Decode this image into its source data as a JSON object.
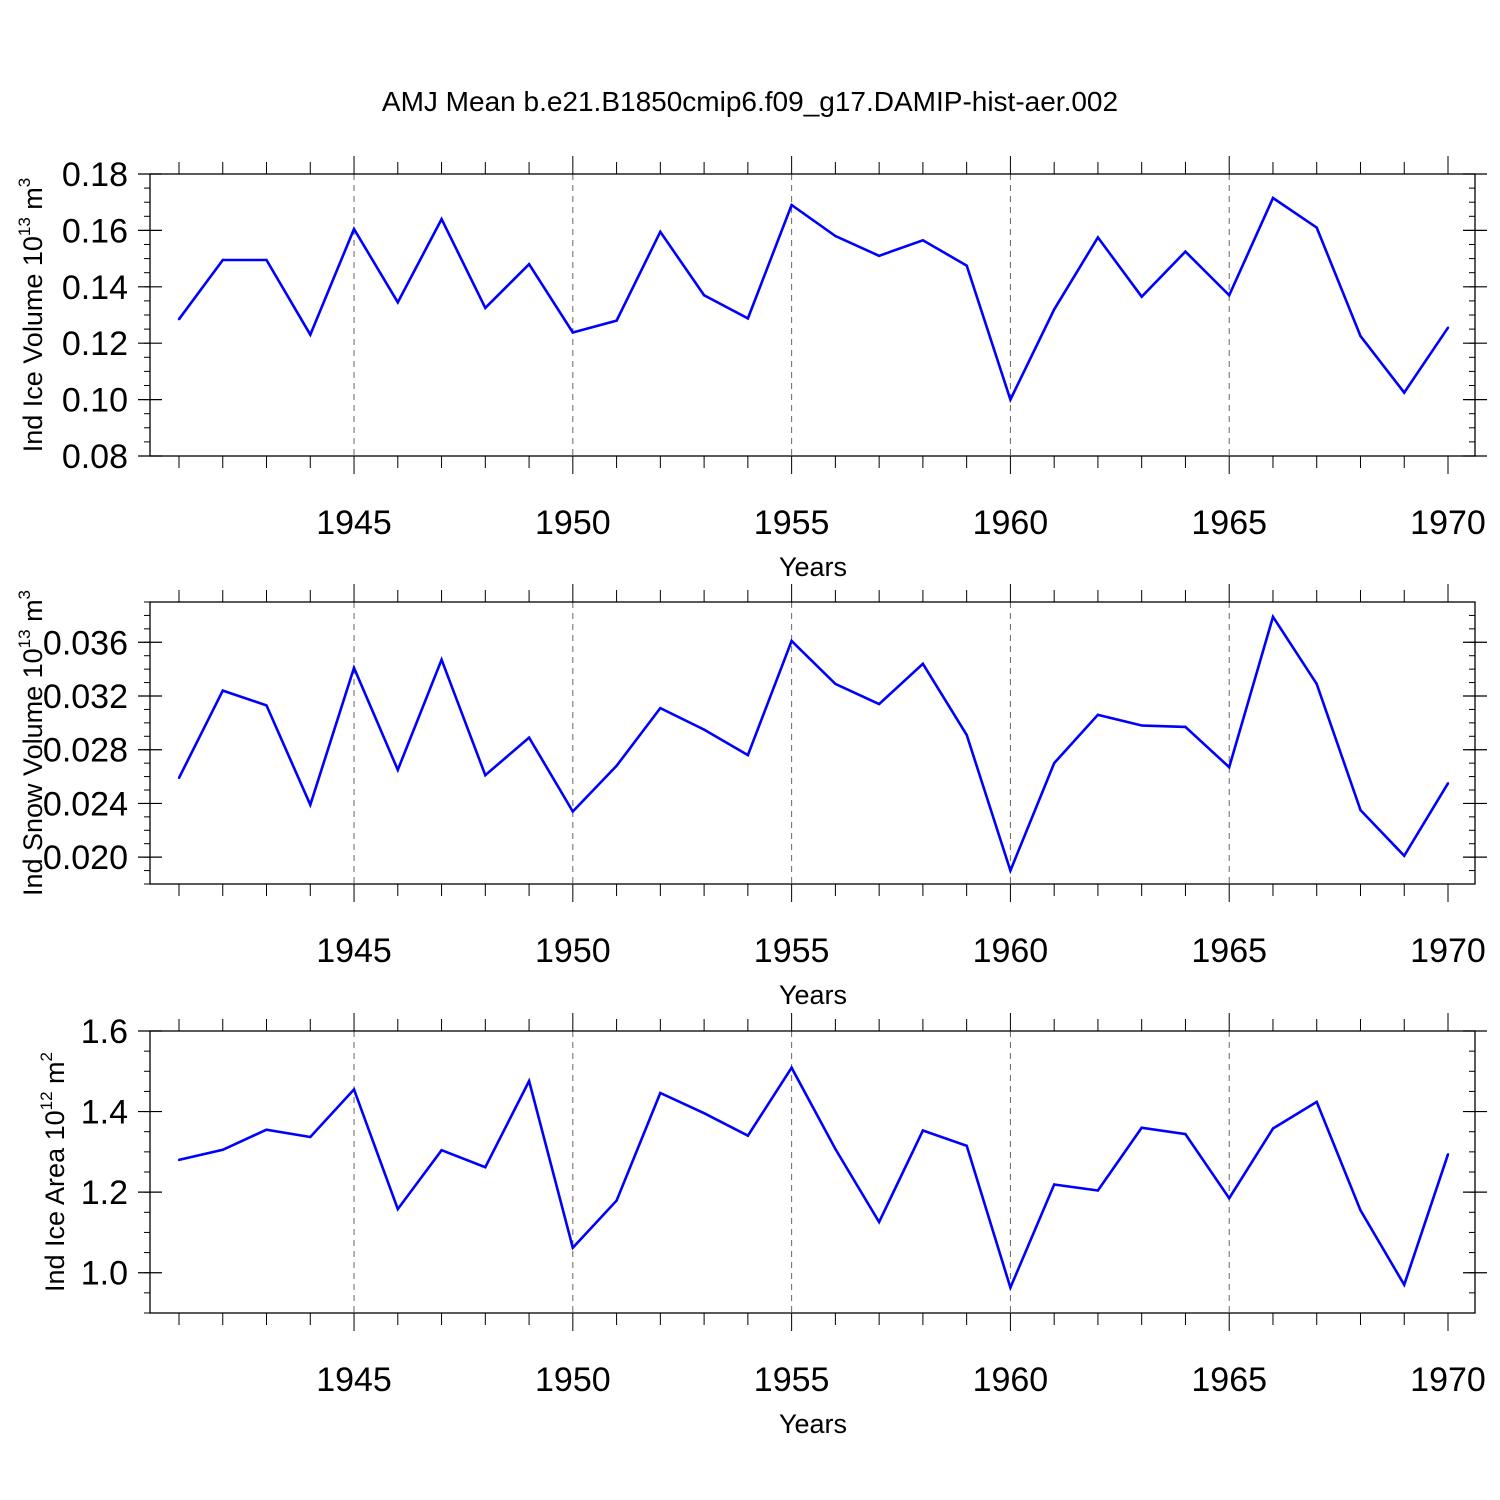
{
  "title": "AMJ Mean b.e21.B1850cmip6.f09_g17.DAMIP-hist-aer.002",
  "line_color": "#0000ff",
  "chart_data": [
    {
      "type": "line",
      "ylabel": "Ind Ice Volume 10",
      "ylabel_exp": "13",
      "ylabel_unit": " m",
      "ylabel_unit_exp": "3",
      "xlabel": "Years",
      "xlim": [
        1941,
        1970
      ],
      "ylim": [
        0.08,
        0.18
      ],
      "y_ticks": [
        0.08,
        0.1,
        0.12,
        0.14,
        0.16,
        0.18
      ],
      "y_tick_labels": [
        "0.08",
        "0.10",
        "0.12",
        "0.14",
        "0.16",
        "0.18"
      ],
      "y_minor_step": 0.005,
      "x_ticks": [
        1945,
        1950,
        1955,
        1960,
        1965,
        1970
      ],
      "x_tick_labels": [
        "1945",
        "1950",
        "1955",
        "1960",
        "1965",
        "1970"
      ],
      "grid_x": [
        1945,
        1950,
        1955,
        1960,
        1965
      ],
      "x": [
        1941,
        1942,
        1943,
        1944,
        1945,
        1946,
        1947,
        1948,
        1949,
        1950,
        1951,
        1952,
        1953,
        1954,
        1955,
        1956,
        1957,
        1958,
        1959,
        1960,
        1961,
        1962,
        1963,
        1964,
        1965,
        1966,
        1967,
        1968,
        1969,
        1970
      ],
      "values": [
        0.1285,
        0.1495,
        0.1495,
        0.123,
        0.1605,
        0.1345,
        0.164,
        0.1325,
        0.148,
        0.1238,
        0.128,
        0.1595,
        0.137,
        0.1288,
        0.169,
        0.158,
        0.151,
        0.1565,
        0.1475,
        0.1,
        0.132,
        0.1575,
        0.1365,
        0.1525,
        0.137,
        0.1715,
        0.161,
        0.1225,
        0.1025,
        0.1255
      ]
    },
    {
      "type": "line",
      "ylabel": "Ind Snow Volume 10",
      "ylabel_exp": "13",
      "ylabel_unit": " m",
      "ylabel_unit_exp": "3",
      "xlabel": "Years",
      "xlim": [
        1941,
        1970
      ],
      "ylim": [
        0.018,
        0.039
      ],
      "y_ticks": [
        0.02,
        0.024,
        0.028,
        0.032,
        0.036
      ],
      "y_tick_labels": [
        "0.020",
        "0.024",
        "0.028",
        "0.032",
        "0.036"
      ],
      "y_minor_step": 0.001,
      "x_ticks": [
        1945,
        1950,
        1955,
        1960,
        1965,
        1970
      ],
      "x_tick_labels": [
        "1945",
        "1950",
        "1955",
        "1960",
        "1965",
        "1970"
      ],
      "grid_x": [
        1945,
        1950,
        1955,
        1960,
        1965
      ],
      "x": [
        1941,
        1942,
        1943,
        1944,
        1945,
        1946,
        1947,
        1948,
        1949,
        1950,
        1951,
        1952,
        1953,
        1954,
        1955,
        1956,
        1957,
        1958,
        1959,
        1960,
        1961,
        1962,
        1963,
        1964,
        1965,
        1966,
        1967,
        1968,
        1969,
        1970
      ],
      "values": [
        0.0259,
        0.0324,
        0.0313,
        0.0239,
        0.0341,
        0.0265,
        0.0347,
        0.0261,
        0.0289,
        0.0234,
        0.0268,
        0.0311,
        0.0295,
        0.0276,
        0.0361,
        0.0329,
        0.0314,
        0.0344,
        0.0291,
        0.019,
        0.027,
        0.0306,
        0.0298,
        0.0297,
        0.0267,
        0.0379,
        0.0329,
        0.0235,
        0.0201,
        0.0255
      ]
    },
    {
      "type": "line",
      "ylabel": "Ind Ice Area 10",
      "ylabel_exp": "12",
      "ylabel_unit": " m",
      "ylabel_unit_exp": "2",
      "xlabel": "Years",
      "xlim": [
        1941,
        1970
      ],
      "ylim": [
        0.9,
        1.6
      ],
      "y_ticks": [
        1.0,
        1.2,
        1.4,
        1.6
      ],
      "y_tick_labels": [
        "1.0",
        "1.2",
        "1.4",
        "1.6"
      ],
      "y_minor_step": 0.05,
      "x_ticks": [
        1945,
        1950,
        1955,
        1960,
        1965,
        1970
      ],
      "x_tick_labels": [
        "1945",
        "1950",
        "1955",
        "1960",
        "1965",
        "1970"
      ],
      "grid_x": [
        1945,
        1950,
        1955,
        1960,
        1965
      ],
      "x": [
        1941,
        1942,
        1943,
        1944,
        1945,
        1946,
        1947,
        1948,
        1949,
        1950,
        1951,
        1952,
        1953,
        1954,
        1955,
        1956,
        1957,
        1958,
        1959,
        1960,
        1961,
        1962,
        1963,
        1964,
        1965,
        1966,
        1967,
        1968,
        1969,
        1970
      ],
      "values": [
        1.28,
        1.305,
        1.355,
        1.337,
        1.455,
        1.158,
        1.304,
        1.262,
        1.476,
        1.062,
        1.179,
        1.446,
        1.396,
        1.34,
        1.509,
        1.307,
        1.126,
        1.353,
        1.315,
        0.963,
        1.219,
        1.204,
        1.36,
        1.344,
        1.185,
        1.358,
        1.424,
        1.155,
        0.97,
        1.294
      ]
    }
  ]
}
